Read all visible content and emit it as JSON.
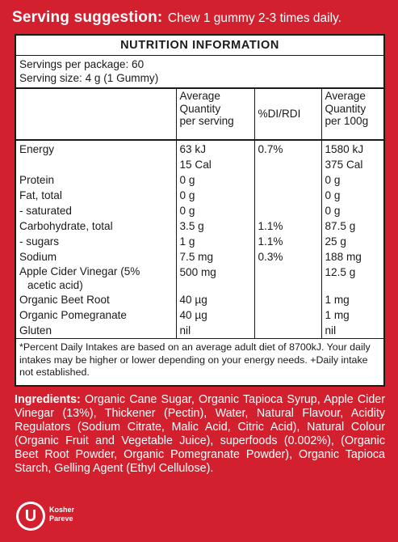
{
  "serving_suggestion": {
    "label": "Serving suggestion:",
    "text": "Chew 1 gummy 2-3 times daily."
  },
  "panel": {
    "title": "NUTRITION INFORMATION",
    "servings_per_package": "Servings per package: 60",
    "serving_size": "Serving size: 4 g (1 Gummy)",
    "headers": {
      "avg_serving_l1": "Average",
      "avg_serving_l2": "Quantity",
      "avg_serving_l3": "per serving",
      "di": "%DI/RDI",
      "avg_100g_l1": "Average",
      "avg_100g_l2": "Quantity",
      "avg_100g_l3": "per 100g"
    },
    "rows": [
      {
        "name": "Energy",
        "serving": "63 kJ",
        "di": "0.7%",
        "per100": "1580 kJ"
      },
      {
        "name": "",
        "serving": "15 Cal",
        "di": "",
        "per100": "375 Cal"
      },
      {
        "name": "Protein",
        "serving": "0 g",
        "di": "",
        "per100": "0 g"
      },
      {
        "name": "Fat, total",
        "serving": "0 g",
        "di": "",
        "per100": "0 g"
      },
      {
        "name": "- saturated",
        "serving": "0 g",
        "di": "",
        "per100": "0 g"
      },
      {
        "name": "Carbohydrate, total",
        "serving": "3.5 g",
        "di": "1.1%",
        "per100": "87.5 g"
      },
      {
        "name": "- sugars",
        "serving": "1 g",
        "di": "1.1%",
        "per100": "25 g"
      },
      {
        "name": "Sodium",
        "serving": "7.5 mg",
        "di": "0.3%",
        "per100": "188 mg"
      },
      {
        "name": "Apple Cider Vinegar (5%",
        "name2": "acetic acid)",
        "serving": "500 mg",
        "di": "",
        "per100": "12.5 g"
      },
      {
        "name": "Organic Beet Root",
        "serving": "40 µg",
        "di": "",
        "per100": "1 mg"
      },
      {
        "name": "Organic Pomegranate",
        "serving": "40 µg",
        "di": "",
        "per100": "1 mg"
      },
      {
        "name": "Gluten",
        "serving": "nil",
        "di": "",
        "per100": "nil"
      }
    ],
    "footnote": "*Percent Daily Intakes are based on an average adult diet of 8700kJ. Your daily intakes may be higher or lower depending on your energy needs. +Daily intake not established."
  },
  "ingredients": {
    "label": "Ingredients:",
    "text": "Organic Cane Sugar, Organic Tapioca Syrup, Apple Cider Vinegar (13%), Thickener (Pectin), Water, Natural Flavour, Acidity Regulators (Sodium Citrate, Malic Acid, Citric Acid), Natural Colour (Organic Fruit and Vegetable Juice), superfoods (0.002%), (Organic Beet Root Powder, Organic Pomegranate Powder), Organic Tapioca Starch, Gelling Agent (Ethyl Cellulose)."
  },
  "kosher": {
    "symbol": "U",
    "line1": "Kosher",
    "line2": "Pareve",
    "icon": "kosher-u-icon"
  },
  "colors": {
    "background": "#d3202f",
    "panel": "#ffffff",
    "text_dark": "#1a1a1a"
  }
}
